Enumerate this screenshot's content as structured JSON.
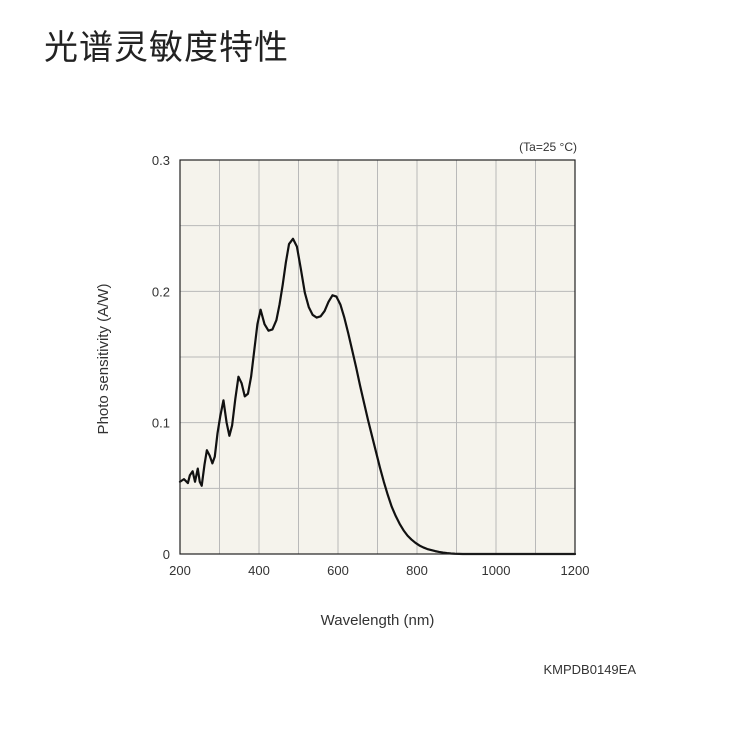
{
  "page": {
    "heading": "光谱灵敏度特性",
    "figure_code": "KMPDB0149EA"
  },
  "chart_data": {
    "type": "line",
    "title": "",
    "condition": "(Ta=25 °C)",
    "xlabel": "Wavelength (nm)",
    "ylabel": "Photo sensitivity (A/W)",
    "xlim": [
      200,
      1200
    ],
    "ylim": [
      0,
      0.3
    ],
    "x_ticks": [
      200,
      400,
      600,
      800,
      1000,
      1200
    ],
    "x_tick_labels": [
      "200",
      "400",
      "600",
      "800",
      "1000",
      "1200"
    ],
    "y_ticks": [
      0,
      0.1,
      0.2,
      0.3
    ],
    "y_tick_labels": [
      "0",
      "0.1",
      "0.2",
      "0.3"
    ],
    "x_minor_step": 100,
    "y_minor_step": 0.05,
    "grid": true,
    "background_color": "#f5f3ec",
    "line_color": "#111111",
    "grid_color": "#b9b9b9",
    "series": [
      {
        "name": "",
        "x": [
          200,
          210,
          220,
          225,
          232,
          238,
          245,
          250,
          255,
          262,
          268,
          275,
          282,
          288,
          295,
          302,
          310,
          318,
          325,
          332,
          340,
          348,
          356,
          364,
          372,
          380,
          388,
          396,
          404,
          414,
          424,
          434,
          444,
          452,
          460,
          468,
          476,
          486,
          496,
          506,
          516,
          526,
          536,
          546,
          556,
          566,
          576,
          586,
          596,
          606,
          616,
          626,
          636,
          646,
          656,
          666,
          676,
          686,
          696,
          706,
          716,
          726,
          736,
          746,
          756,
          766,
          776,
          786,
          796,
          806,
          816,
          826,
          836,
          846,
          856,
          866,
          876,
          886,
          896,
          906,
          916,
          926,
          936,
          946,
          956,
          966,
          976,
          986,
          996,
          1010,
          1025,
          1040,
          1060,
          1080,
          1100,
          1120,
          1140,
          1160,
          1180,
          1200
        ],
        "y": [
          0.055,
          0.057,
          0.054,
          0.06,
          0.063,
          0.055,
          0.065,
          0.055,
          0.052,
          0.068,
          0.079,
          0.075,
          0.069,
          0.074,
          0.092,
          0.105,
          0.117,
          0.1,
          0.09,
          0.098,
          0.118,
          0.135,
          0.13,
          0.12,
          0.122,
          0.135,
          0.155,
          0.175,
          0.186,
          0.175,
          0.17,
          0.171,
          0.178,
          0.19,
          0.205,
          0.222,
          0.236,
          0.24,
          0.234,
          0.217,
          0.199,
          0.188,
          0.182,
          0.18,
          0.181,
          0.185,
          0.192,
          0.197,
          0.196,
          0.19,
          0.18,
          0.168,
          0.155,
          0.142,
          0.128,
          0.115,
          0.102,
          0.09,
          0.078,
          0.066,
          0.055,
          0.045,
          0.036,
          0.029,
          0.023,
          0.018,
          0.014,
          0.011,
          0.0085,
          0.0065,
          0.005,
          0.0038,
          0.003,
          0.0022,
          0.0016,
          0.0011,
          0.0007,
          0.0004,
          0.0002,
          0.0001,
          0.0,
          0.0,
          0.0,
          0.0,
          0.0,
          0.0,
          0.0,
          0.0,
          0.0,
          0.0,
          0.0,
          0.0,
          0.0,
          0.0,
          0.0,
          0.0,
          0.0,
          0.0,
          0.0,
          0.0
        ]
      }
    ]
  }
}
